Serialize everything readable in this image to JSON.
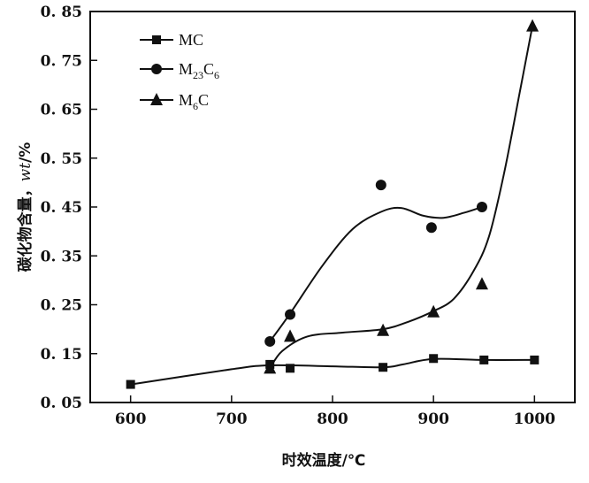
{
  "chart_data": {
    "type": "line",
    "title": "",
    "xlabel": "时效温度/℃",
    "ylabel_prefix": "碳化物含量，",
    "ylabel_italic": "wt",
    "ylabel_suffix": "/%",
    "xlim": [
      560,
      1040
    ],
    "ylim": [
      0.05,
      0.85
    ],
    "xticks": [
      600,
      700,
      800,
      900,
      1000
    ],
    "yticks": [
      0.05,
      0.15,
      0.25,
      0.35,
      0.45,
      0.55,
      0.65,
      0.75,
      0.85
    ],
    "xtick_labels": [
      "600",
      "700",
      "800",
      "900",
      "1000"
    ],
    "ytick_labels": [
      "0. 05",
      "0. 15",
      "0. 25",
      "0. 35",
      "0. 45",
      "0. 55",
      "0. 65",
      "0. 75",
      "0. 85"
    ],
    "grid": false,
    "legend_position": "top-left",
    "series": [
      {
        "name": "MC",
        "legend_main": "MC",
        "legend_sub": "",
        "legend_tail": "",
        "marker": "square",
        "x": [
          600,
          738,
          758,
          850,
          900,
          950,
          1000
        ],
        "y": [
          0.087,
          0.128,
          0.12,
          0.122,
          0.14,
          0.137,
          0.137
        ],
        "curve": [
          [
            600,
            0.087
          ],
          [
            700,
            0.118
          ],
          [
            738,
            0.126
          ],
          [
            800,
            0.124
          ],
          [
            850,
            0.122
          ],
          [
            870,
            0.128
          ],
          [
            900,
            0.139
          ],
          [
            950,
            0.137
          ],
          [
            1000,
            0.137
          ]
        ]
      },
      {
        "name": "M23C6",
        "legend_main": "M",
        "legend_sub": "23",
        "legend_tail": "C6",
        "marker": "circle",
        "x": [
          738,
          758,
          848,
          898,
          948
        ],
        "y": [
          0.175,
          0.23,
          0.495,
          0.408,
          0.45
        ],
        "curve": [
          [
            738,
            0.175
          ],
          [
            758,
            0.232
          ],
          [
            790,
            0.33
          ],
          [
            820,
            0.405
          ],
          [
            848,
            0.44
          ],
          [
            868,
            0.448
          ],
          [
            890,
            0.432
          ],
          [
            910,
            0.428
          ],
          [
            930,
            0.438
          ],
          [
            948,
            0.45
          ]
        ]
      },
      {
        "name": "M6C",
        "legend_main": "M",
        "legend_sub": "6",
        "legend_tail": "C",
        "marker": "triangle",
        "x": [
          738,
          758,
          850,
          900,
          948,
          998
        ],
        "y": [
          0.12,
          0.185,
          0.197,
          0.235,
          0.292,
          0.82
        ],
        "curve": [
          [
            738,
            0.12
          ],
          [
            750,
            0.155
          ],
          [
            775,
            0.185
          ],
          [
            810,
            0.193
          ],
          [
            850,
            0.2
          ],
          [
            875,
            0.215
          ],
          [
            900,
            0.237
          ],
          [
            920,
            0.262
          ],
          [
            940,
            0.32
          ],
          [
            955,
            0.39
          ],
          [
            970,
            0.52
          ],
          [
            985,
            0.68
          ],
          [
            998,
            0.82
          ]
        ]
      }
    ]
  }
}
